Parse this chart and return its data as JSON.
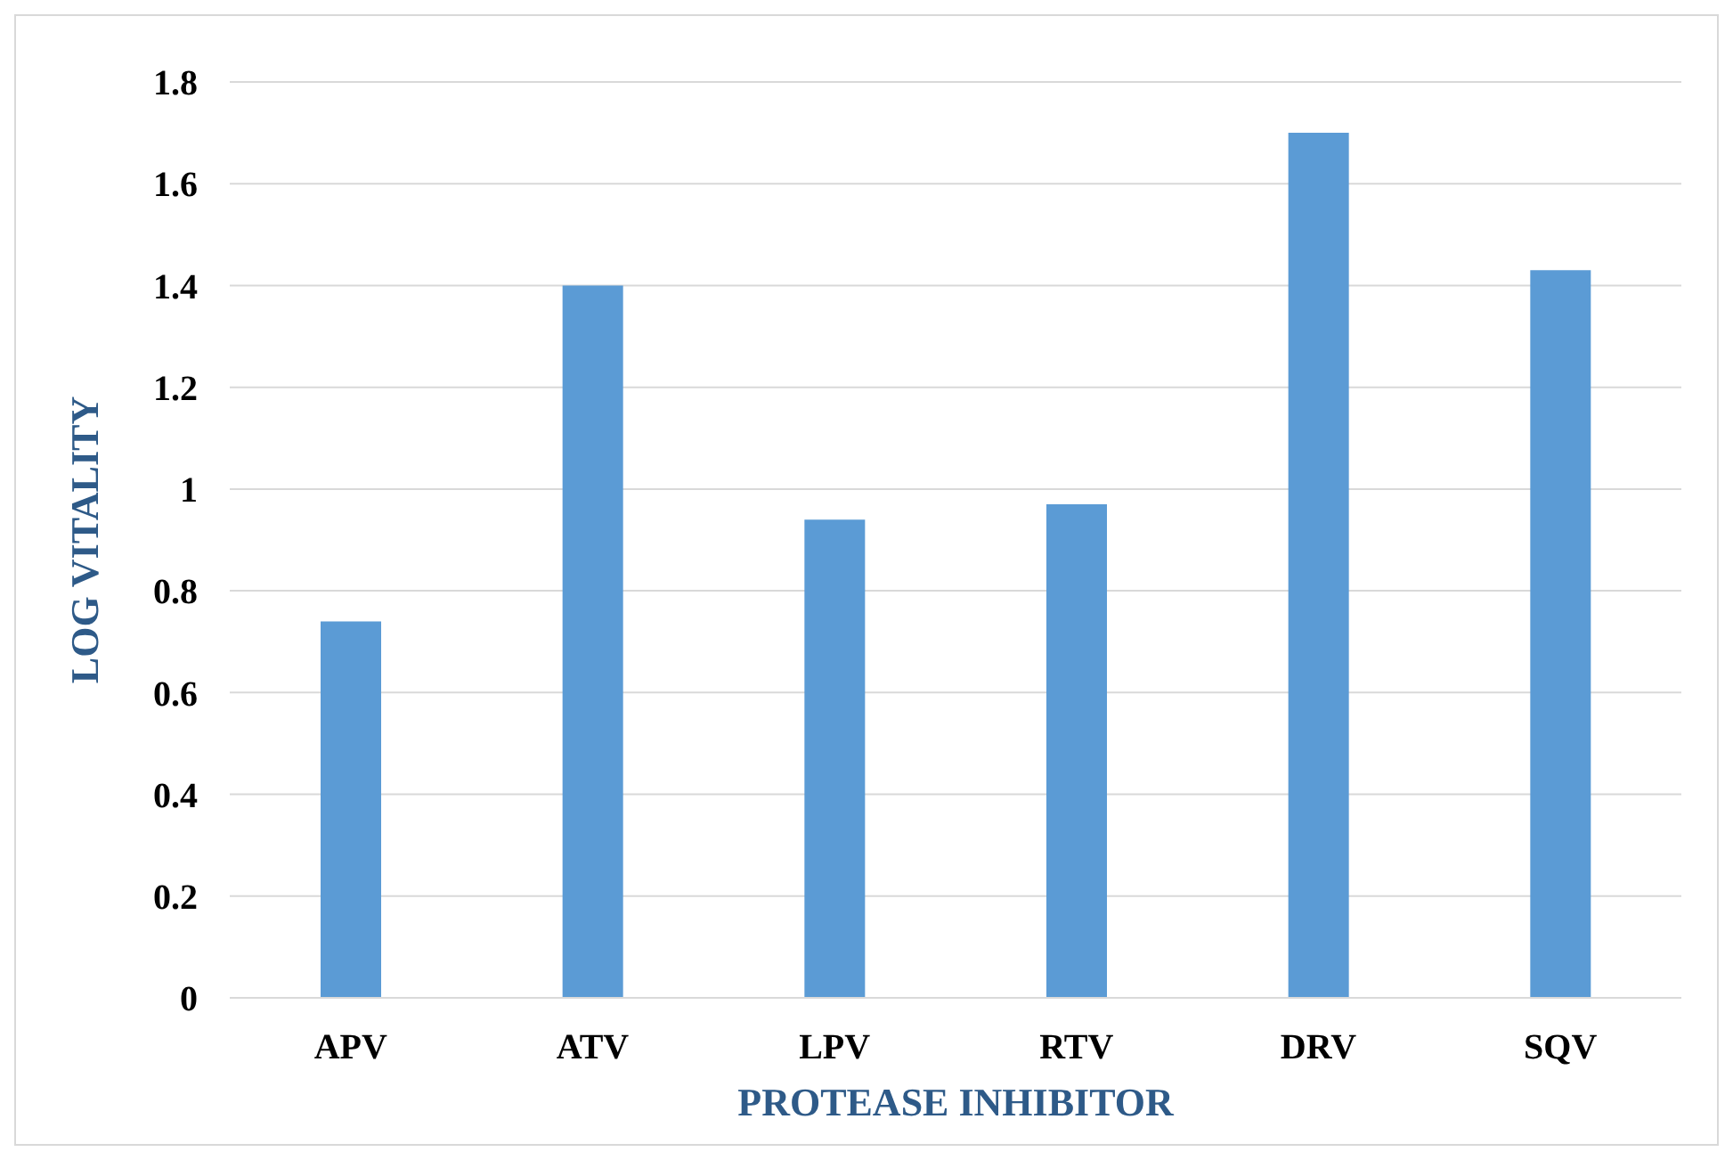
{
  "chart_data": {
    "type": "bar",
    "xlabel": "PROTEASE INHIBITOR",
    "ylabel": "LOG VITALITY",
    "categories": [
      "APV",
      "ATV",
      "LPV",
      "RTV",
      "DRV",
      "SQV"
    ],
    "values": [
      0.74,
      1.4,
      0.94,
      0.97,
      1.7,
      1.43
    ],
    "color": "#5b9bd5",
    "ylim": [
      0,
      1.8
    ],
    "yticks": [
      0,
      0.2,
      0.4,
      0.6,
      0.8,
      1,
      1.2,
      1.4,
      1.6,
      1.8
    ],
    "grid": "y"
  }
}
